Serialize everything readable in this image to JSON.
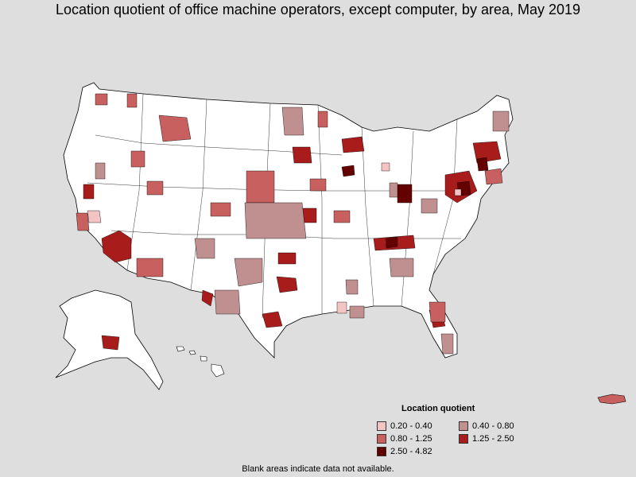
{
  "title": "Location quotient of office machine operators, except computer, by area, May 2019",
  "legend": {
    "title": "Location quotient",
    "bins": [
      {
        "label": "0.20 - 0.40",
        "color": "#f4c4c4"
      },
      {
        "label": "0.40 - 0.80",
        "color": "#c09090"
      },
      {
        "label": "0.80 - 1.25",
        "color": "#c86060"
      },
      {
        "label": "1.25 - 2.50",
        "color": "#a81c1c"
      },
      {
        "label": "2.50 - 4.82",
        "color": "#640000"
      }
    ]
  },
  "footnote": "Blank areas indicate data not available.",
  "colors": {
    "background": "#dedede",
    "land_no_data": "#ffffff",
    "border": "#000000"
  }
}
